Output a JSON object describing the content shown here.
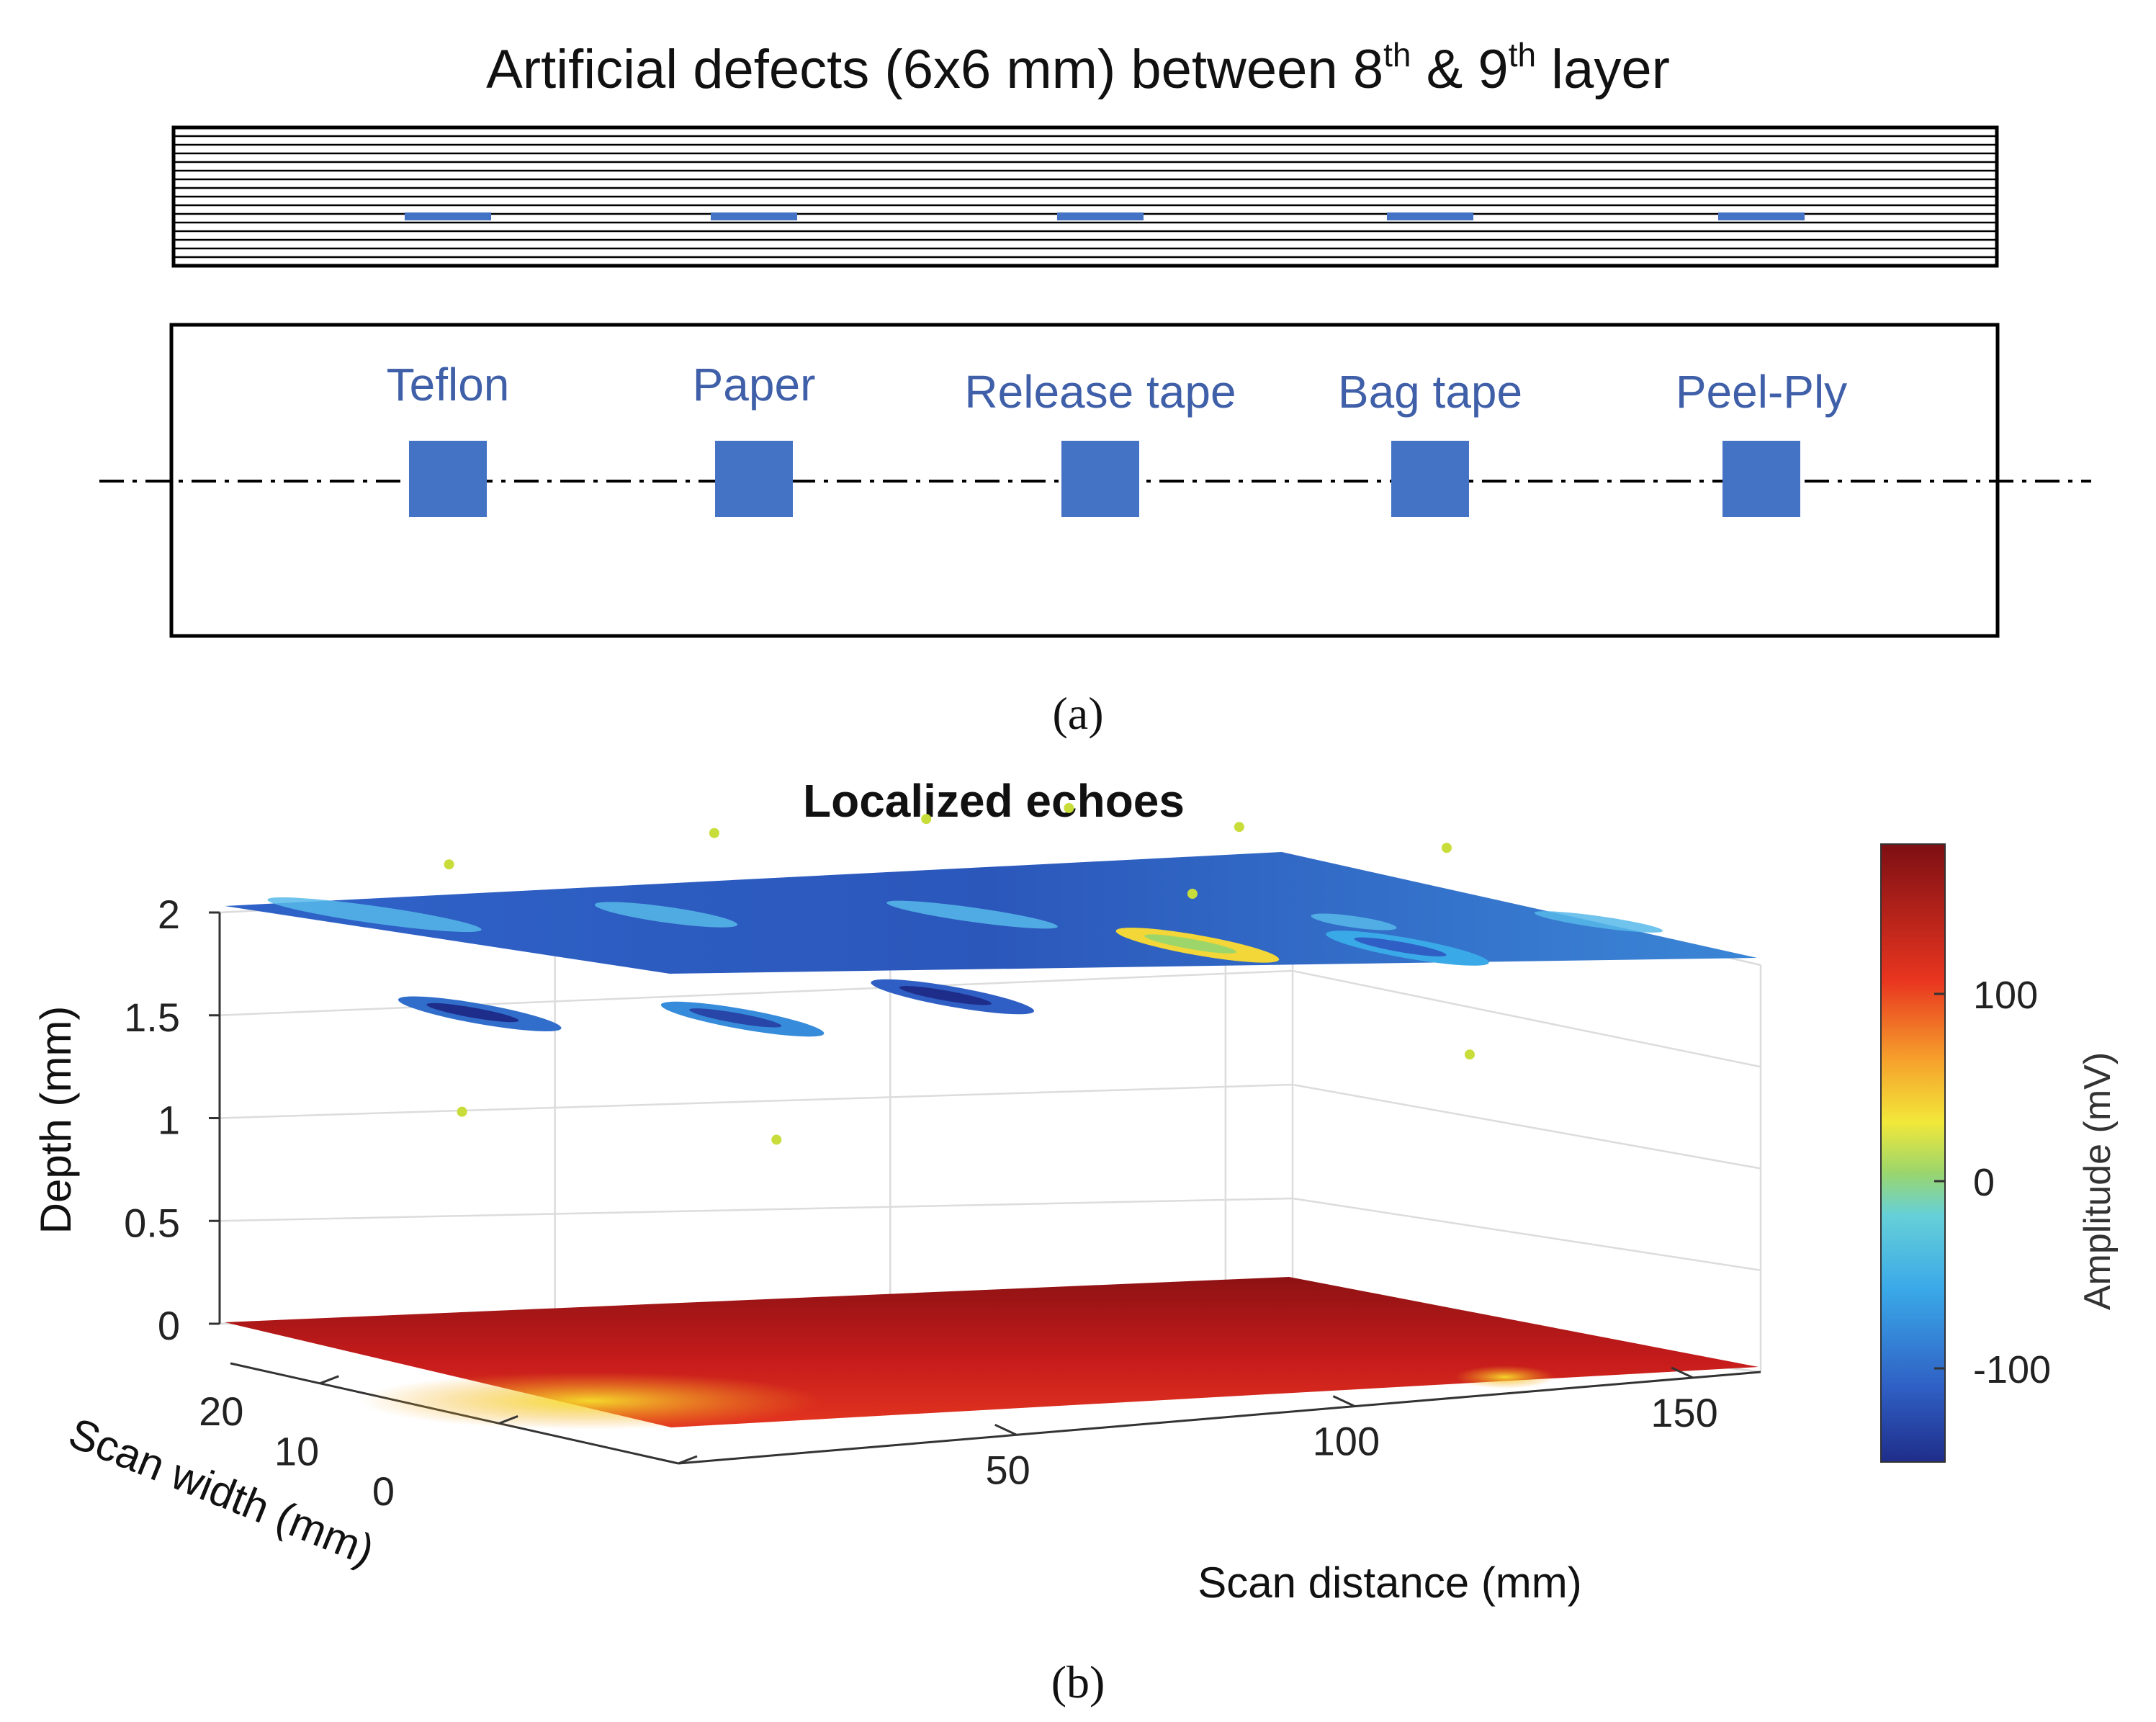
{
  "panel_a": {
    "title_prefix": "Artificial defects (6x6 mm) between 8",
    "title_sup1": "th",
    "title_mid": " & 9",
    "title_sup2": "th",
    "title_suffix": " layer",
    "caption": "(a)",
    "defects": [
      "Teflon",
      "Paper",
      "Release tape",
      "Bag tape",
      "Peel-Ply"
    ],
    "colors": {
      "defect": "#4472c4",
      "label": "#3f5fa8",
      "outline": "#000000"
    }
  },
  "chart_data": {
    "type": "scatter",
    "title": "Localized echoes",
    "xlabel": "Scan distance (mm)",
    "ylabel": "Scan width (mm)",
    "zlabel": "Depth (mm)",
    "colorbar_label": "Amplitude (mV)",
    "xlim": [
      0,
      160
    ],
    "ylim": [
      0,
      25
    ],
    "zlim": [
      0,
      2.2
    ],
    "clim": [
      -150,
      180
    ],
    "xticks": [
      "50",
      "100",
      "150"
    ],
    "yticks": [
      "0",
      "10",
      "20"
    ],
    "zticks": [
      "0",
      "0.5",
      "1",
      "1.5",
      "2"
    ],
    "cticks": [
      "-100",
      "0",
      "100"
    ],
    "caption": "(b)",
    "surfaces": [
      {
        "name": "",
        "depth": 2.0,
        "amplitude": -120,
        "x_range": [
          0,
          155
        ],
        "y_range": [
          0,
          25
        ]
      },
      {
        "name": "",
        "depth": 0.0,
        "amplitude": 160,
        "x_range": [
          0,
          155
        ],
        "y_range": [
          0,
          25
        ]
      }
    ],
    "defect_echoes": [
      {
        "x_center": 10,
        "y_center": 15,
        "depth": 1.45,
        "amplitude": -100
      },
      {
        "x_center": 45,
        "y_center": 14,
        "depth": 1.35,
        "amplitude": -80
      },
      {
        "x_center": 75,
        "y_center": 14,
        "depth": 1.38,
        "amplitude": -110
      },
      {
        "x_center": 110,
        "y_center": 14,
        "depth": 1.55,
        "amplitude": 50
      },
      {
        "x_center": 140,
        "y_center": 14,
        "depth": 1.45,
        "amplitude": -60
      }
    ]
  }
}
